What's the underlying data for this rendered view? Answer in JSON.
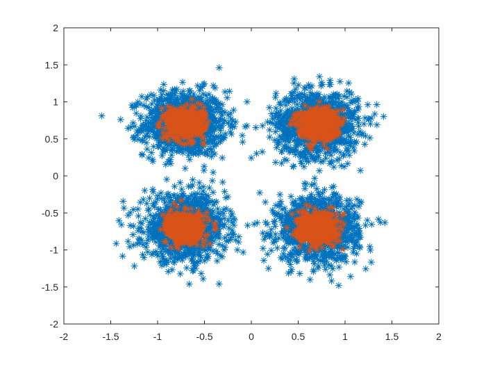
{
  "chart_data": {
    "type": "scatter",
    "marker": "asterisk",
    "xlim": [
      -2,
      2
    ],
    "ylim": [
      -2,
      2
    ],
    "grid": false,
    "x_ticks": [
      "-2",
      "-1.5",
      "-1",
      "-0.5",
      "0",
      "0.5",
      "1",
      "1.5",
      "2"
    ],
    "y_ticks": [
      "2",
      "1.5",
      "1",
      "0.5",
      "0",
      "-0.5",
      "-1",
      "-1.5",
      "-2"
    ],
    "x_tick_values": [
      -2,
      -1.5,
      -1,
      -0.5,
      0,
      0.5,
      1,
      1.5,
      2
    ],
    "y_tick_values": [
      2,
      1.5,
      1,
      0.5,
      0,
      -0.5,
      -1,
      -1.5,
      -2
    ],
    "series": [
      {
        "color": "#0072BD",
        "clusters": [
          {
            "center": [
              -0.707,
              0.707
            ],
            "spread": 0.22
          },
          {
            "center": [
              0.707,
              0.707
            ],
            "spread": 0.22
          },
          {
            "center": [
              -0.707,
              -0.707
            ],
            "spread": 0.22
          },
          {
            "center": [
              0.707,
              -0.707
            ],
            "spread": 0.22
          }
        ],
        "x_extent": [
          -1.6,
          1.6
        ],
        "y_extent": [
          -1.6,
          1.6
        ]
      },
      {
        "color": "#D95319",
        "clusters": [
          {
            "center": [
              -0.707,
              0.707
            ],
            "spread": 0.1
          },
          {
            "center": [
              0.707,
              0.707
            ],
            "spread": 0.1
          },
          {
            "center": [
              -0.707,
              -0.707
            ],
            "spread": 0.1
          },
          {
            "center": [
              0.707,
              -0.707
            ],
            "spread": 0.1
          }
        ],
        "x_extent": [
          -1.0,
          1.0
        ],
        "y_extent": [
          -1.15,
          1.15
        ]
      }
    ]
  }
}
